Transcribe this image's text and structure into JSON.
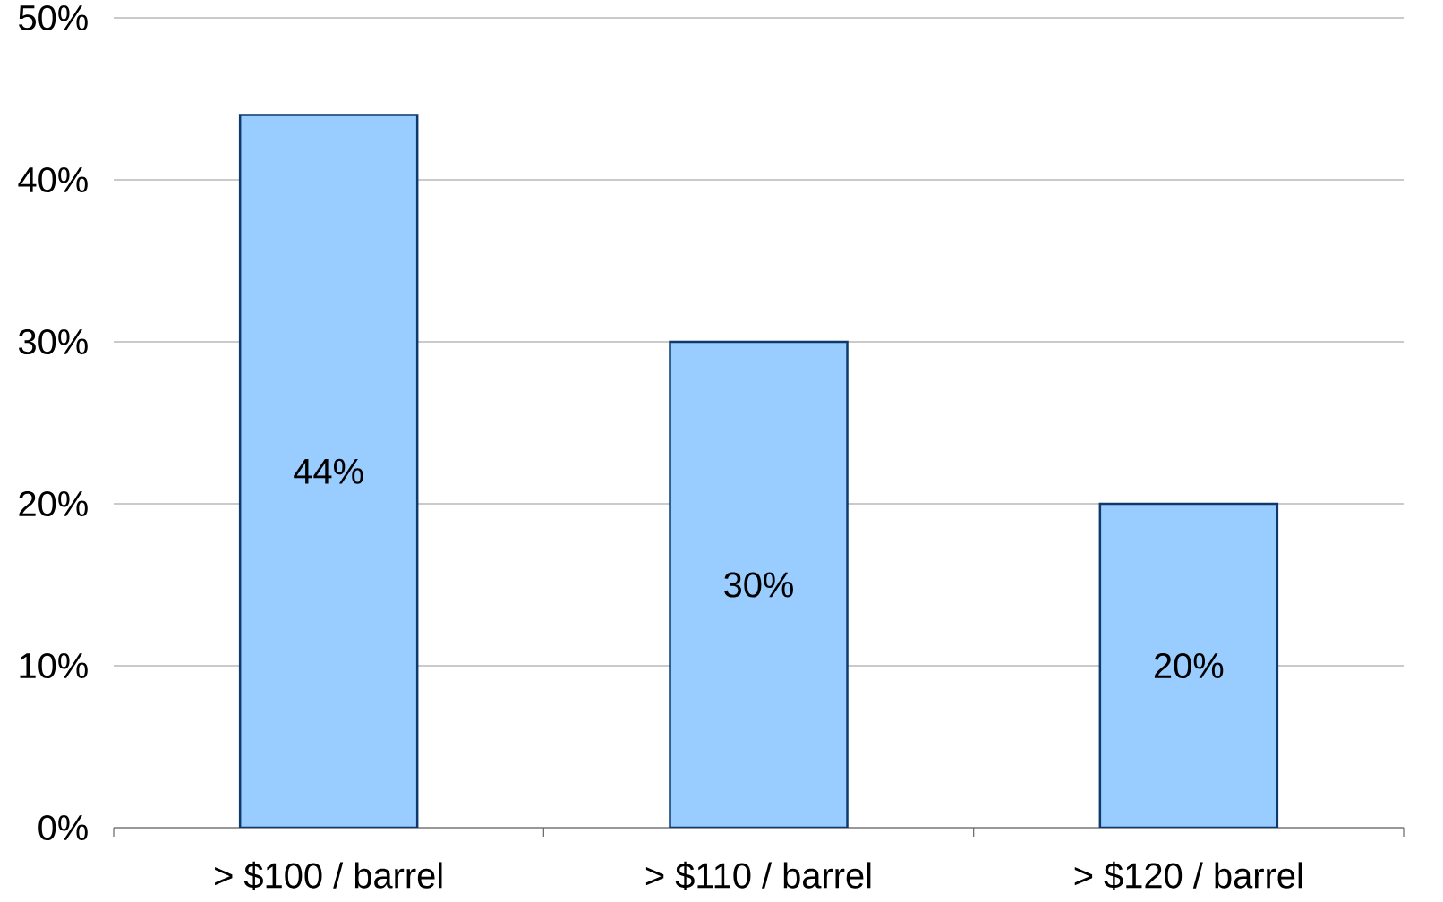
{
  "chart_data": {
    "type": "bar",
    "categories": [
      "> $100 / barrel",
      "> $110 / barrel",
      "> $120 / barrel"
    ],
    "values": [
      44,
      30,
      20
    ],
    "value_labels": [
      "44%",
      "30%",
      "20%"
    ],
    "color": "#99ccff",
    "ylim": [
      0,
      50
    ],
    "yticks": [
      {
        "value": 0,
        "label": "0%"
      },
      {
        "value": 10,
        "label": "10%"
      },
      {
        "value": 20,
        "label": "20%"
      },
      {
        "value": 30,
        "label": "30%"
      },
      {
        "value": 40,
        "label": "40%"
      },
      {
        "value": 50,
        "label": "50%"
      }
    ],
    "grid": "y"
  }
}
